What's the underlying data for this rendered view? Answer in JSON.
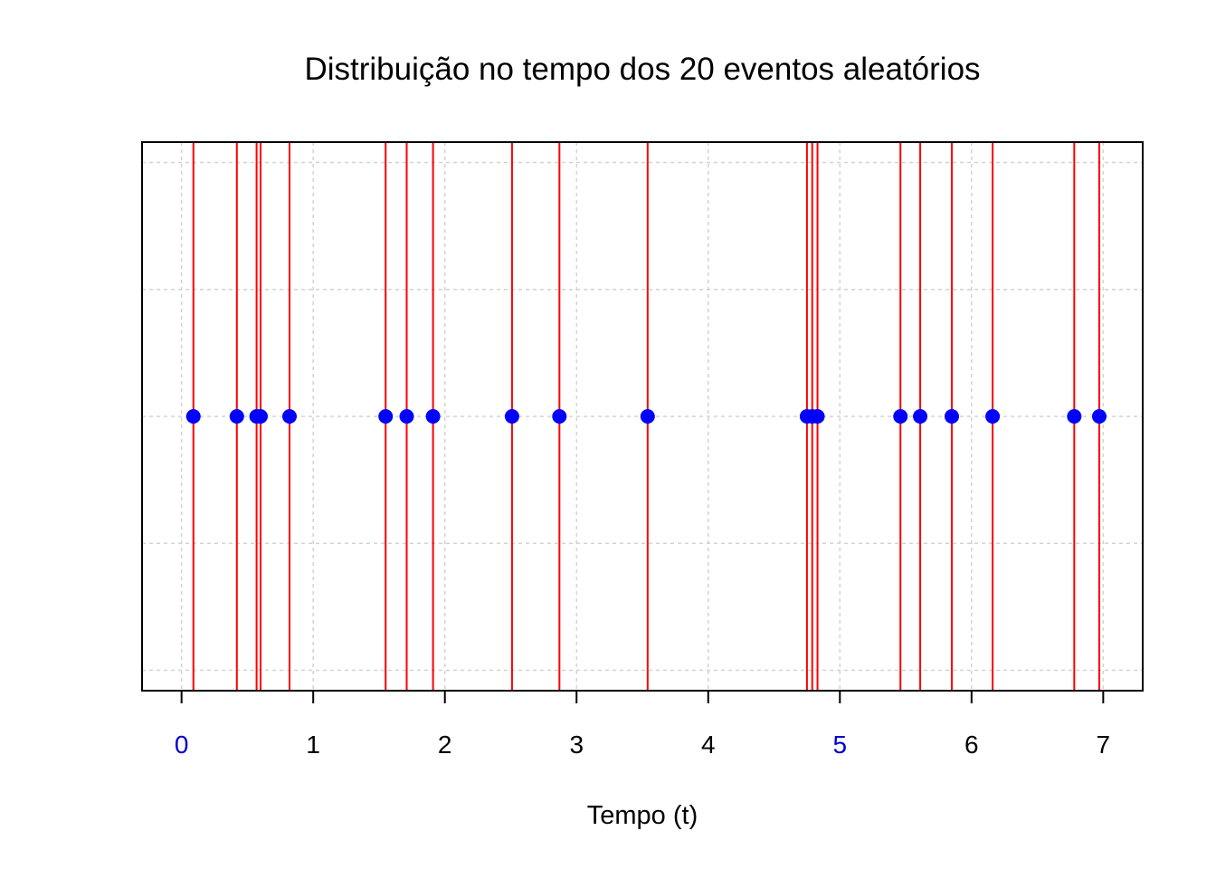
{
  "chart_data": {
    "type": "scatter",
    "title": "Distribuição no tempo dos  20  eventos aleatórios",
    "xlabel": "Tempo (t)",
    "ylabel": "",
    "xlim": [
      -0.3,
      7.3
    ],
    "ylim": [
      -1.08,
      1.08
    ],
    "x_ticks": [
      0,
      1,
      2,
      3,
      4,
      5,
      6,
      7
    ],
    "highlighted_ticks": [
      0,
      5
    ],
    "y_grid": [
      -1,
      -0.5,
      0,
      0.5,
      1
    ],
    "grid": true,
    "event_times": [
      0.09,
      0.42,
      0.57,
      0.6,
      0.82,
      1.55,
      1.71,
      1.91,
      2.51,
      2.87,
      3.54,
      4.75,
      4.79,
      4.83,
      5.46,
      5.61,
      5.85,
      6.16,
      6.78,
      6.97
    ],
    "y_value": 0,
    "colors": {
      "lines": "#ff0000",
      "points": "#0000ff",
      "highlighted_tick": "#0000cd",
      "tick": "#000000",
      "grid": "#d3d3d3"
    }
  }
}
